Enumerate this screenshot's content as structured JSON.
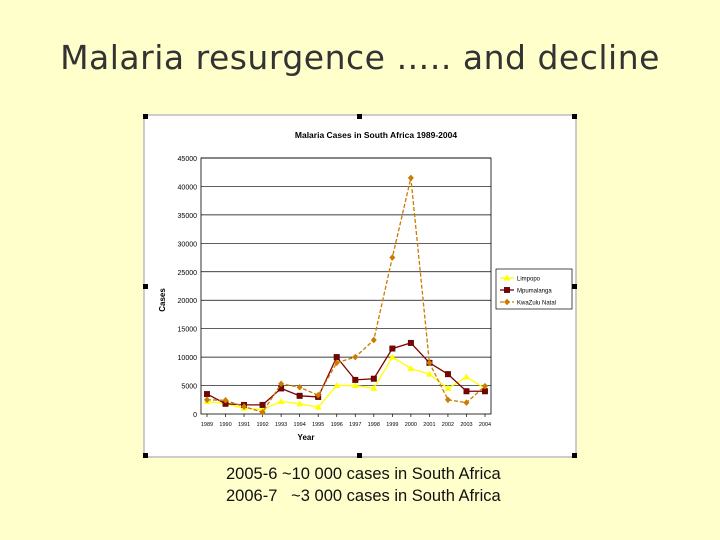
{
  "slide": {
    "title": "Malaria resurgence ….. and decline",
    "notes": [
      "2005-6 ~10 000 cases in South Africa",
      "2006-7   ~3 000 cases in South Africa"
    ]
  },
  "colors": {
    "background": "#ffffcc",
    "limpopo": "#ffff00",
    "mpumalanga": "#800000",
    "kwazulu_natal": "#cc7a00"
  },
  "chart_data": {
    "type": "line",
    "title": "Malaria Cases in South Africa 1989-2004",
    "xlabel": "Year",
    "ylabel": "Cases",
    "ylim": [
      0,
      45000
    ],
    "yticks": [
      0,
      5000,
      10000,
      15000,
      20000,
      25000,
      30000,
      35000,
      40000,
      45000
    ],
    "ytick_labels": [
      "0",
      "5000",
      "10000",
      "15000",
      "20000",
      "25000",
      "30000",
      "35000",
      "40000",
      "45000"
    ],
    "grid": true,
    "legend": "right",
    "categories": [
      "1989",
      "1990",
      "1991",
      "1992",
      "1993",
      "1994",
      "1995",
      "1996",
      "1997",
      "1998",
      "1999",
      "2000",
      "2001",
      "2002",
      "2003",
      "2004"
    ],
    "series": [
      {
        "name": "Limpopo",
        "color": "#ffff00",
        "marker": "triangle",
        "values": [
          2200,
          1800,
          1000,
          800,
          2200,
          1800,
          1200,
          5000,
          5000,
          4500,
          10000,
          8000,
          7000,
          4500,
          6500,
          4500
        ]
      },
      {
        "name": "Mpumalanga",
        "color": "#800000",
        "marker": "square",
        "values": [
          3500,
          1800,
          1600,
          1600,
          4500,
          3200,
          3000,
          10000,
          6000,
          6200,
          11500,
          12500,
          9000,
          7000,
          4000,
          4000
        ]
      },
      {
        "name": "KwaZulu Natal",
        "color": "#cc7a00",
        "marker": "diamond",
        "dashed": true,
        "values": [
          2500,
          2400,
          1300,
          300,
          5300,
          4700,
          3300,
          9000,
          10000,
          13000,
          27500,
          41500,
          9000,
          2500,
          2000,
          4900
        ]
      }
    ]
  }
}
